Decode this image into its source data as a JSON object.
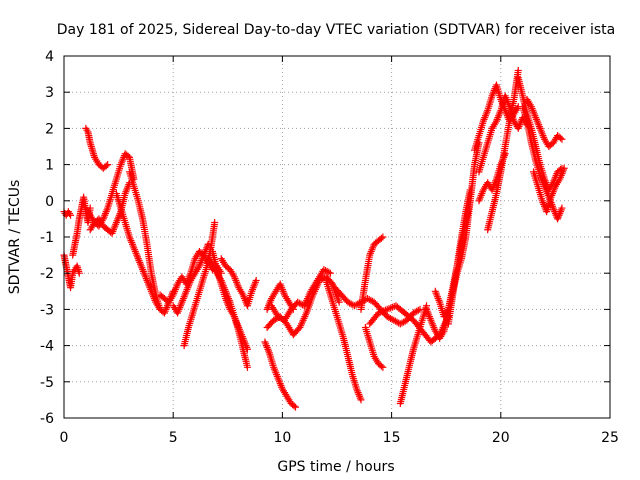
{
  "chart_data": {
    "type": "scatter",
    "title": "Day 181 of 2025, Sidereal Day-to-day VTEC variation (SDTVAR) for receiver ista",
    "xlabel": "GPS time / hours",
    "ylabel": "SDTVAR / TECUs",
    "xlim": [
      0,
      25
    ],
    "ylim": [
      -6,
      4
    ],
    "xticks": [
      0,
      5,
      10,
      15,
      20,
      25
    ],
    "yticks": [
      -6,
      -5,
      -4,
      -3,
      -2,
      -1,
      0,
      1,
      2,
      3,
      4
    ],
    "grid": true,
    "marker": "+",
    "color": "#ff0000",
    "series": [
      {
        "name": "seg1",
        "x": [
          0.0,
          0.1,
          0.2,
          0.3
        ],
        "y": [
          -0.3,
          -0.4,
          -0.3,
          -0.4
        ]
      },
      {
        "name": "seg2",
        "x": [
          0.0,
          0.1,
          0.2,
          0.3,
          0.4,
          0.5,
          0.6,
          0.7
        ],
        "y": [
          -1.5,
          -1.8,
          -2.1,
          -2.4,
          -2.0,
          -1.9,
          -1.8,
          -2.0
        ]
      },
      {
        "name": "seg3",
        "x": [
          0.4,
          0.5,
          0.6,
          0.7,
          0.8,
          0.9,
          1.0,
          1.1,
          1.2
        ],
        "y": [
          -1.5,
          -1.2,
          -0.9,
          -0.5,
          -0.2,
          0.1,
          -0.3,
          -0.6,
          -0.2
        ]
      },
      {
        "name": "seg4",
        "x": [
          1.0,
          1.1,
          1.2,
          1.3,
          1.4,
          1.6,
          1.8,
          2.0
        ],
        "y": [
          2.0,
          1.9,
          1.6,
          1.4,
          1.2,
          1.0,
          0.9,
          1.0
        ]
      },
      {
        "name": "seg5",
        "x": [
          1.0,
          1.2,
          1.4,
          1.6,
          1.8,
          2.0,
          2.2,
          2.4,
          2.6,
          2.8,
          3.0,
          3.2
        ],
        "y": [
          -0.2,
          -0.4,
          -0.6,
          -0.7,
          -0.5,
          -0.2,
          0.2,
          0.6,
          1.0,
          1.3,
          1.2,
          0.6
        ]
      },
      {
        "name": "seg6",
        "x": [
          1.2,
          1.4,
          1.6,
          1.8,
          2.0,
          2.2,
          2.4,
          2.6,
          2.8,
          3.0
        ],
        "y": [
          -0.8,
          -0.6,
          -0.5,
          -0.7,
          -0.8,
          -0.9,
          -0.6,
          -0.3,
          0.2,
          0.5
        ]
      },
      {
        "name": "seg7",
        "x": [
          3.0,
          3.2,
          3.4,
          3.6,
          3.8,
          4.0,
          4.2,
          4.4,
          4.6,
          4.8,
          5.0
        ],
        "y": [
          0.8,
          0.4,
          0.0,
          -0.5,
          -1.2,
          -2.0,
          -2.6,
          -3.0,
          -3.1,
          -2.8,
          -2.5
        ]
      },
      {
        "name": "seg8",
        "x": [
          2.4,
          2.6,
          2.8,
          3.0,
          3.2,
          3.4,
          3.6,
          3.8,
          4.0,
          4.2,
          4.4
        ],
        "y": [
          0.2,
          -0.2,
          -0.6,
          -1.0,
          -1.3,
          -1.6,
          -1.9,
          -2.2,
          -2.5,
          -2.8,
          -3.0
        ]
      },
      {
        "name": "seg9",
        "x": [
          4.4,
          4.6,
          4.8,
          5.0,
          5.2,
          5.4,
          5.6,
          5.8,
          6.0,
          6.2,
          6.4,
          6.6,
          6.8,
          7.0,
          7.2
        ],
        "y": [
          -2.6,
          -2.7,
          -2.8,
          -2.6,
          -2.3,
          -2.1,
          -2.3,
          -2.0,
          -1.6,
          -1.4,
          -1.5,
          -1.7,
          -1.9,
          -1.8,
          -2.0
        ]
      },
      {
        "name": "seg10",
        "x": [
          5.0,
          5.2,
          5.4,
          5.6,
          5.8,
          6.0,
          6.2,
          6.4,
          6.6
        ],
        "y": [
          -2.9,
          -3.1,
          -2.8,
          -2.5,
          -2.2,
          -2.0,
          -1.8,
          -1.5,
          -1.2
        ]
      },
      {
        "name": "seg11",
        "x": [
          5.5,
          5.7,
          5.9,
          6.1,
          6.3,
          6.5,
          6.7,
          6.9
        ],
        "y": [
          -4.0,
          -3.5,
          -3.1,
          -2.7,
          -2.3,
          -1.9,
          -1.4,
          -0.6
        ]
      },
      {
        "name": "seg12",
        "x": [
          6.8,
          7.0,
          7.2,
          7.4,
          7.6,
          7.8,
          8.0,
          8.2,
          8.4
        ],
        "y": [
          -1.4,
          -1.9,
          -2.3,
          -2.7,
          -3.0,
          -3.2,
          -3.6,
          -4.1,
          -4.6
        ]
      },
      {
        "name": "seg13",
        "x": [
          6.6,
          6.8,
          7.0,
          7.2,
          7.4,
          7.6,
          7.8,
          8.0,
          8.2,
          8.4
        ],
        "y": [
          -1.6,
          -1.8,
          -2.0,
          -2.2,
          -2.5,
          -2.8,
          -3.2,
          -3.5,
          -3.8,
          -4.1
        ]
      },
      {
        "name": "seg14",
        "x": [
          7.2,
          7.4,
          7.6,
          7.8,
          8.0,
          8.2,
          8.4,
          8.6,
          8.8
        ],
        "y": [
          -1.6,
          -1.8,
          -1.9,
          -2.1,
          -2.4,
          -2.6,
          -2.9,
          -2.5,
          -2.2
        ]
      },
      {
        "name": "seg15",
        "x": [
          9.3,
          9.5,
          9.7,
          9.9,
          10.1,
          10.3,
          10.5
        ],
        "y": [
          -3.0,
          -2.7,
          -2.5,
          -2.3,
          -2.6,
          -2.8,
          -3.0
        ]
      },
      {
        "name": "seg16",
        "x": [
          9.2,
          9.4,
          9.6,
          9.8,
          10.0,
          10.2,
          10.4,
          10.6
        ],
        "y": [
          -3.9,
          -4.2,
          -4.6,
          -4.9,
          -5.2,
          -5.4,
          -5.6,
          -5.7
        ]
      },
      {
        "name": "seg17",
        "x": [
          9.3,
          9.6,
          9.9,
          10.2,
          10.5,
          10.8,
          11.1,
          11.4,
          11.7,
          12.0,
          12.3,
          12.6
        ],
        "y": [
          -3.5,
          -3.3,
          -3.2,
          -3.4,
          -3.7,
          -3.5,
          -3.1,
          -2.6,
          -2.2,
          -2.1,
          -2.3,
          -2.8
        ]
      },
      {
        "name": "seg18",
        "x": [
          9.5,
          9.8,
          10.1,
          10.4,
          10.7,
          11.0,
          11.3,
          11.6,
          11.9,
          12.2
        ],
        "y": [
          -2.9,
          -3.2,
          -3.3,
          -3.0,
          -2.8,
          -2.9,
          -2.5,
          -2.2,
          -1.9,
          -2.0
        ]
      },
      {
        "name": "seg19",
        "x": [
          12.0,
          12.2,
          12.4,
          12.6,
          12.8,
          13.0,
          13.2,
          13.4,
          13.6
        ],
        "y": [
          -2.2,
          -2.6,
          -3.0,
          -3.4,
          -3.8,
          -4.3,
          -4.8,
          -5.2,
          -5.5
        ]
      },
      {
        "name": "seg20",
        "x": [
          12.4,
          12.7,
          13.0,
          13.3,
          13.6,
          13.9,
          14.2,
          14.5,
          14.8,
          15.1,
          15.4,
          15.7,
          16.0,
          16.3
        ],
        "y": [
          -2.4,
          -2.6,
          -2.8,
          -2.9,
          -2.8,
          -2.7,
          -2.8,
          -3.0,
          -3.2,
          -3.3,
          -3.4,
          -3.3,
          -3.1,
          -3.0
        ]
      },
      {
        "name": "seg21",
        "x": [
          13.6,
          13.8,
          14.0,
          14.2,
          14.4,
          14.6
        ],
        "y": [
          -3.0,
          -2.2,
          -1.5,
          -1.2,
          -1.1,
          -1.0
        ]
      },
      {
        "name": "seg22",
        "x": [
          13.8,
          14.0,
          14.2,
          14.4,
          14.6
        ],
        "y": [
          -3.5,
          -3.9,
          -4.3,
          -4.5,
          -4.6
        ]
      },
      {
        "name": "seg23",
        "x": [
          14.0,
          14.4,
          14.8,
          15.2,
          15.6,
          16.0,
          16.4,
          16.8,
          17.2,
          17.6
        ],
        "y": [
          -3.4,
          -3.1,
          -3.0,
          -2.9,
          -3.1,
          -3.3,
          -3.6,
          -3.9,
          -3.7,
          -3.2
        ]
      },
      {
        "name": "seg24",
        "x": [
          15.4,
          15.6,
          15.8,
          16.0,
          16.2,
          16.4,
          16.6
        ],
        "y": [
          -5.6,
          -5.1,
          -4.6,
          -4.1,
          -3.7,
          -3.3,
          -2.9
        ]
      },
      {
        "name": "seg25",
        "x": [
          16.6,
          16.8,
          17.0,
          17.2,
          17.4,
          17.6,
          17.8,
          18.0,
          18.2,
          18.4,
          18.6
        ],
        "y": [
          -3.0,
          -3.3,
          -3.6,
          -3.8,
          -3.6,
          -3.0,
          -2.4,
          -1.8,
          -1.2,
          -0.6,
          0.0
        ]
      },
      {
        "name": "seg26",
        "x": [
          17.0,
          17.2,
          17.4,
          17.6,
          17.8,
          18.0,
          18.2,
          18.4,
          18.6,
          18.8,
          19.0
        ],
        "y": [
          -2.5,
          -2.8,
          -3.2,
          -3.0,
          -2.5,
          -2.0,
          -1.6,
          -1.0,
          0.0,
          1.0,
          1.6
        ]
      },
      {
        "name": "seg27",
        "x": [
          17.6,
          17.8,
          18.0,
          18.2,
          18.4,
          18.6
        ],
        "y": [
          -3.4,
          -2.6,
          -1.8,
          -1.0,
          -0.3,
          0.3
        ]
      },
      {
        "name": "seg28",
        "x": [
          18.8,
          19.0,
          19.2,
          19.4,
          19.6,
          19.8,
          20.0,
          20.2,
          20.4,
          20.6,
          20.8
        ],
        "y": [
          1.4,
          1.8,
          2.2,
          2.5,
          2.9,
          3.2,
          2.8,
          2.5,
          2.2,
          2.4,
          2.6
        ]
      },
      {
        "name": "seg29",
        "x": [
          19.0,
          19.2,
          19.4,
          19.6,
          19.8,
          20.0,
          20.2,
          20.4,
          20.6,
          20.8,
          21.0,
          21.2
        ],
        "y": [
          0.8,
          1.2,
          1.6,
          2.0,
          2.2,
          2.5,
          2.9,
          2.6,
          2.2,
          2.0,
          2.3,
          2.1
        ]
      },
      {
        "name": "seg30",
        "x": [
          19.0,
          19.2,
          19.4,
          19.6,
          19.8,
          20.0,
          20.2
        ],
        "y": [
          0.0,
          0.3,
          0.5,
          0.3,
          0.6,
          1.0,
          1.3
        ]
      },
      {
        "name": "seg31",
        "x": [
          19.4,
          19.6,
          19.8,
          20.0,
          20.2,
          20.4,
          20.6,
          20.8
        ],
        "y": [
          -0.8,
          -0.3,
          0.2,
          0.8,
          1.5,
          2.2,
          2.8,
          3.6
        ]
      },
      {
        "name": "seg32",
        "x": [
          20.8,
          21.0,
          21.2,
          21.4,
          21.6,
          21.8,
          22.0,
          22.2,
          22.4,
          22.6,
          22.8
        ],
        "y": [
          3.4,
          2.9,
          2.4,
          2.0,
          1.5,
          1.0,
          0.6,
          0.3,
          0.5,
          0.8,
          0.9
        ]
      },
      {
        "name": "seg33",
        "x": [
          21.0,
          21.2,
          21.4,
          21.6,
          21.8,
          22.0,
          22.2,
          22.4,
          22.6,
          22.8
        ],
        "y": [
          2.6,
          2.2,
          1.6,
          1.1,
          0.7,
          0.4,
          0.1,
          -0.2,
          -0.5,
          -0.2
        ]
      },
      {
        "name": "seg34",
        "x": [
          21.2,
          21.4,
          21.6,
          21.8,
          22.0,
          22.2,
          22.4,
          22.6,
          22.8
        ],
        "y": [
          2.8,
          2.6,
          2.3,
          2.0,
          1.7,
          1.5,
          1.6,
          1.8,
          1.7
        ]
      },
      {
        "name": "seg35",
        "x": [
          21.5,
          21.7,
          21.9,
          22.1,
          22.3,
          22.5,
          22.7,
          22.9
        ],
        "y": [
          0.8,
          0.4,
          0.0,
          -0.3,
          0.1,
          0.4,
          0.6,
          0.9
        ]
      }
    ]
  }
}
